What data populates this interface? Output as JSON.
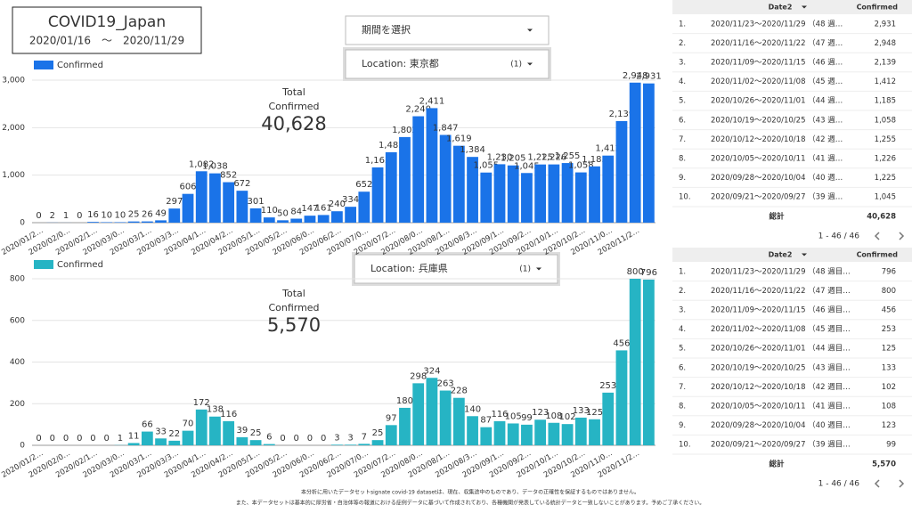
{
  "header": {
    "title": "COVID19_Japan",
    "period": "2020/01/16　～　2020/11/29"
  },
  "controls": [
    {
      "label": "期間を選択"
    },
    {
      "label": "Location: 東京都",
      "count": "(1)"
    },
    {
      "label": "Location: 兵庫県",
      "count": "(1)"
    }
  ],
  "chart_data": [
    {
      "type": "bar",
      "scorecard": {
        "title": "Total",
        "label": "Confirmed",
        "value": "40,628"
      },
      "categories": [
        "2020/01/2…",
        null,
        "2020/02/0…",
        null,
        "2020/02/1…",
        null,
        "2020/03/0…",
        null,
        "2020/03/1…",
        null,
        "2020/03/3…",
        null,
        "2020/04/1…",
        null,
        "2020/04/2…",
        null,
        "2020/05/1…",
        null,
        "2020/05/2…",
        null,
        "2020/06/0…",
        null,
        "2020/06/2…",
        null,
        "2020/07/0…",
        null,
        "2020/07/2…",
        null,
        "2020/08/0…",
        null,
        "2020/08/1…",
        null,
        "2020/08/3…",
        null,
        "2020/09/1…",
        null,
        "2020/09/2…",
        null,
        "2020/10/1…",
        null,
        "2020/10/2…",
        null,
        "2020/11/0…",
        null,
        "2020/11/2…",
        null
      ],
      "series": [
        {
          "name": "Confirmed",
          "color": "#1a73e8",
          "values": [
            0,
            2,
            1,
            0,
            16,
            10,
            10,
            25,
            26,
            49,
            297,
            606,
            1082,
            1038,
            852,
            672,
            301,
            110,
            50,
            84,
            147,
            161,
            240,
            334,
            652,
            1163,
            1483,
            1802,
            2240,
            2411,
            1847,
            1619,
            1384,
            1055,
            1230,
            1205,
            1045,
            1225,
            1226,
            1255,
            1058,
            1185,
            1412,
            2139,
            2948,
            2931
          ],
          "value_labels": [
            "0",
            "2",
            "1",
            "0",
            "16",
            "10",
            "10",
            "25",
            "26",
            "49",
            "297",
            "606",
            "1,082",
            "1,038",
            "852",
            "672",
            "301",
            "110",
            "50",
            "84",
            "147",
            "161",
            "240",
            "334",
            "652",
            "1,163",
            "1,483",
            "1,802",
            "2,240",
            "2,411",
            "1,847",
            "1,619",
            "1,384",
            "1,055",
            "1,230",
            "1,205",
            "1,045",
            "1,225",
            "1,226",
            "1,255",
            "1,058",
            "1,185",
            "1,412",
            "2,139",
            "2,948",
            "2,931"
          ]
        }
      ],
      "ylim": [
        0,
        3000
      ],
      "yticks": [
        0,
        {
          "value": 1000,
          "label": "1,000"
        },
        {
          "value": 2000,
          "label": "2,000"
        },
        {
          "value": 3000,
          "label": "3,000"
        }
      ],
      "grid": true,
      "legend": "top-left"
    },
    {
      "type": "bar",
      "scorecard": {
        "title": "Total",
        "label": "Confirmed",
        "value": "5,570"
      },
      "categories": [
        "2020/01/2…",
        null,
        "2020/02/0…",
        null,
        "2020/02/1…",
        null,
        "2020/03/0…",
        null,
        "2020/03/1…",
        null,
        "2020/03/3…",
        null,
        "2020/04/1…",
        null,
        "2020/04/2…",
        null,
        "2020/05/1…",
        null,
        "2020/05/2…",
        null,
        "2020/06/0…",
        null,
        "2020/06/2…",
        null,
        "2020/07/0…",
        null,
        "2020/07/2…",
        null,
        "2020/08/0…",
        null,
        "2020/08/1…",
        null,
        "2020/08/3…",
        null,
        "2020/09/1…",
        null,
        "2020/09/2…",
        null,
        "2020/10/1…",
        null,
        "2020/10/2…",
        null,
        "2020/11/0…",
        null,
        "2020/11/2…",
        null
      ],
      "series": [
        {
          "name": "Confirmed",
          "color": "#26b4c4",
          "values": [
            0,
            0,
            0,
            0,
            0,
            0,
            1,
            11,
            66,
            33,
            22,
            70,
            172,
            138,
            116,
            39,
            25,
            6,
            0,
            0,
            0,
            0,
            3,
            3,
            7,
            25,
            97,
            180,
            298,
            324,
            263,
            228,
            140,
            87,
            116,
            105,
            99,
            123,
            108,
            102,
            133,
            125,
            253,
            456,
            800,
            796
          ]
        }
      ],
      "ylim": [
        0,
        800
      ],
      "yticks": [
        0,
        200,
        400,
        600,
        800
      ],
      "grid": true,
      "legend": "top-left"
    }
  ],
  "tables": [
    {
      "columns": [
        "Date2",
        "Confirmed"
      ],
      "rows": [
        [
          "1.",
          "2020/11/23～2020/11/29 （48 週…",
          "2,931"
        ],
        [
          "2.",
          "2020/11/16～2020/11/22 （47 週…",
          "2,948"
        ],
        [
          "3.",
          "2020/11/09～2020/11/15 （46 週…",
          "2,139"
        ],
        [
          "4.",
          "2020/11/02～2020/11/08 （45 週…",
          "1,412"
        ],
        [
          "5.",
          "2020/10/26～2020/11/01 （44 週…",
          "1,185"
        ],
        [
          "6.",
          "2020/10/19～2020/10/25 （43 週…",
          "1,058"
        ],
        [
          "7.",
          "2020/10/12～2020/10/18 （42 週…",
          "1,255"
        ],
        [
          "8.",
          "2020/10/05～2020/10/11 （41 週…",
          "1,226"
        ],
        [
          "9.",
          "2020/09/28～2020/10/04 （40 週…",
          "1,225"
        ],
        [
          "10.",
          "2020/09/21～2020/09/27 （39 週…",
          "1,045"
        ]
      ],
      "total_label": "総計",
      "total": "40,628",
      "pager": "1 - 46 / 46"
    },
    {
      "columns": [
        "Date2",
        "Confirmed"
      ],
      "rows": [
        [
          "1.",
          "2020/11/23～2020/11/29 （48 週目…",
          "796"
        ],
        [
          "2.",
          "2020/11/16～2020/11/22 （47 週目…",
          "800"
        ],
        [
          "3.",
          "2020/11/09～2020/11/15 （46 週目…",
          "456"
        ],
        [
          "4.",
          "2020/11/02～2020/11/08 （45 週目…",
          "253"
        ],
        [
          "5.",
          "2020/10/26～2020/11/01 （44 週目…",
          "125"
        ],
        [
          "6.",
          "2020/10/19～2020/10/25 （43 週目…",
          "133"
        ],
        [
          "7.",
          "2020/10/12～2020/10/18 （42 週目…",
          "102"
        ],
        [
          "8.",
          "2020/10/05～2020/10/11 （41 週目…",
          "108"
        ],
        [
          "9.",
          "2020/09/28～2020/10/04 （40 週目…",
          "123"
        ],
        [
          "10.",
          "2020/09/21～2020/09/27 （39 週目…",
          "99"
        ]
      ],
      "total_label": "総計",
      "total": "5,570",
      "pager": "1 - 46 / 46"
    }
  ],
  "footer": [
    "本分析に用いたデータセットsignate covid-19 datasetは、現在、収集途中のものであり、データの正確性を保証するものではありません。",
    "また、本データセットは基本的に厚労省・自治体等の報道における症例データに基づいて作成されており、各種機関が発表している統計データと一致しないことがあります。予めご了承ください。"
  ]
}
